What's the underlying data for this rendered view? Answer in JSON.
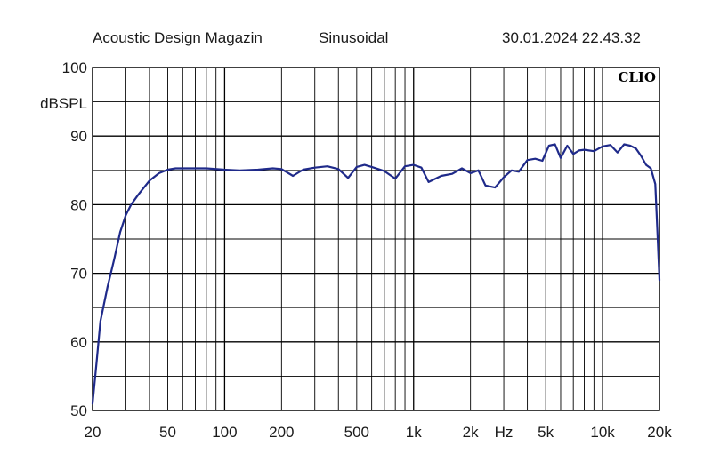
{
  "header": {
    "publisher": "Acoustic Design Magazin",
    "signal": "Sinusoidal",
    "datetime": "30.01.2024 22.43.32"
  },
  "chart_data": {
    "type": "line",
    "brand": "CLIO",
    "ylabel": "dBSPL",
    "xlabel": "Hz",
    "x_scale": "log",
    "xlim": [
      20,
      20000
    ],
    "ylim": [
      50,
      100
    ],
    "grid": true,
    "y_ticks": [
      "100",
      "90",
      "80",
      "70",
      "60",
      "50"
    ],
    "y_tick_values": [
      100,
      90,
      80,
      70,
      60,
      50
    ],
    "x_tick_labels": [
      "20",
      "50",
      "100",
      "200",
      "500",
      "1k",
      "2k",
      "Hz",
      "5k",
      "10k",
      "20k"
    ],
    "x_tick_values": [
      20,
      50,
      100,
      200,
      500,
      1000,
      2000,
      3000,
      5000,
      10000,
      20000
    ],
    "colors": {
      "line": "#1f2a8a",
      "grid": "#000000"
    },
    "series": [
      {
        "x": [
          20,
          21,
          22,
          24,
          26,
          28,
          30,
          32,
          35,
          40,
          45,
          50,
          55,
          60,
          70,
          80,
          100,
          120,
          150,
          180,
          200,
          230,
          260,
          300,
          350,
          400,
          450,
          500,
          550,
          600,
          650,
          700,
          800,
          900,
          1000,
          1100,
          1200,
          1400,
          1600,
          1800,
          2000,
          2200,
          2400,
          2700,
          3000,
          3300,
          3600,
          4000,
          4400,
          4800,
          5200,
          5600,
          6000,
          6500,
          7000,
          7500,
          8000,
          9000,
          10000,
          11000,
          12000,
          13000,
          14000,
          15000,
          16000,
          17000,
          18000,
          19000,
          19500,
          20000
        ],
        "y": [
          51,
          57,
          63,
          68,
          72,
          76,
          78.5,
          80,
          81.5,
          83.5,
          84.6,
          85.1,
          85.3,
          85.3,
          85.3,
          85.3,
          85.1,
          85,
          85.1,
          85.3,
          85.2,
          84.2,
          85.1,
          85.4,
          85.6,
          85.2,
          83.9,
          85.5,
          85.8,
          85.5,
          85.2,
          84.9,
          83.8,
          85.6,
          85.8,
          85.4,
          83.3,
          84.2,
          84.5,
          85.3,
          84.6,
          85,
          82.8,
          82.5,
          84,
          85,
          84.8,
          86.5,
          86.7,
          86.4,
          88.6,
          88.8,
          86.8,
          88.6,
          87.4,
          87.9,
          88,
          87.8,
          88.5,
          88.7,
          87.6,
          88.8,
          88.6,
          88.2,
          87.1,
          85.8,
          85.3,
          83,
          76,
          69
        ]
      }
    ]
  }
}
